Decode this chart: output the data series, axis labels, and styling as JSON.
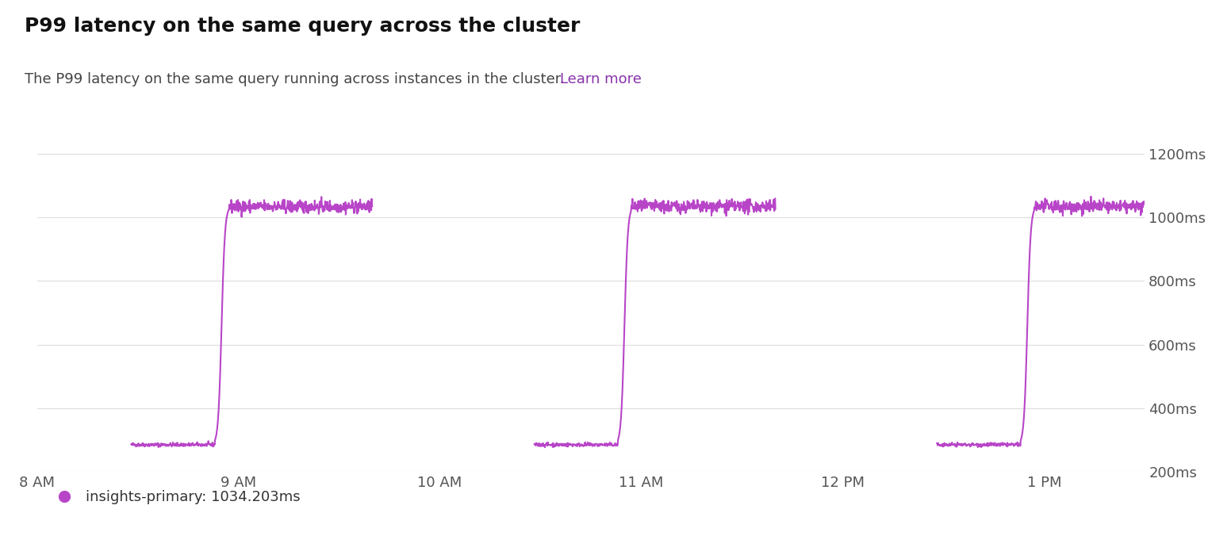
{
  "title": "P99 latency on the same query across the cluster",
  "subtitle": "The P99 latency on the same query running across instances in the cluster.",
  "subtitle_link": "Learn more",
  "line_color": "#b845c8",
  "background_color": "#ffffff",
  "ylim": [
    200,
    1300
  ],
  "yticks": [
    200,
    400,
    600,
    800,
    1000,
    1200
  ],
  "ytick_labels": [
    "200ms",
    "400ms",
    "600ms",
    "800ms",
    "1000ms",
    "1200ms"
  ],
  "xtick_labels": [
    "8 AM",
    "9 AM",
    "10 AM",
    "11 AM",
    "12 PM",
    "1 PM"
  ],
  "legend_label": "insights-primary: 1034.203ms",
  "legend_color": "#b845c8",
  "title_fontsize": 18,
  "subtitle_fontsize": 13,
  "tick_fontsize": 13
}
